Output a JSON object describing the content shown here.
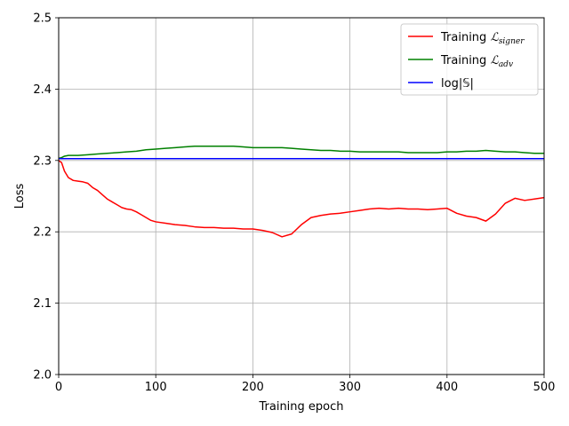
{
  "chart_data": {
    "type": "line",
    "xlabel": "Training epoch",
    "ylabel": "Loss",
    "xlim": [
      0,
      500
    ],
    "ylim": [
      2.0,
      2.5
    ],
    "xticks": [
      0,
      100,
      200,
      300,
      400,
      500
    ],
    "yticks": [
      2.0,
      2.1,
      2.2,
      2.3,
      2.4,
      2.5
    ],
    "xtick_labels": [
      "0",
      "100",
      "200",
      "300",
      "400",
      "500"
    ],
    "ytick_labels": [
      "2.0",
      "2.1",
      "2.2",
      "2.3",
      "2.4",
      "2.5"
    ],
    "grid": true,
    "legend_position": "top-right",
    "series": [
      {
        "name": "Training ℒsigner",
        "legend_main": "Training ",
        "legend_symbol": "ℒ",
        "legend_sub": "signer",
        "color": "#ff0000",
        "x": [
          0,
          3,
          6,
          10,
          15,
          20,
          25,
          30,
          35,
          40,
          45,
          50,
          55,
          60,
          65,
          70,
          75,
          80,
          85,
          90,
          95,
          100,
          110,
          120,
          130,
          140,
          150,
          160,
          170,
          180,
          190,
          200,
          210,
          220,
          230,
          240,
          250,
          260,
          270,
          280,
          290,
          300,
          310,
          320,
          330,
          340,
          350,
          360,
          370,
          380,
          390,
          400,
          410,
          420,
          430,
          440,
          450,
          460,
          470,
          480,
          490,
          500
        ],
        "y": [
          2.3,
          2.297,
          2.285,
          2.276,
          2.272,
          2.271,
          2.27,
          2.268,
          2.262,
          2.258,
          2.252,
          2.246,
          2.242,
          2.238,
          2.234,
          2.232,
          2.231,
          2.228,
          2.224,
          2.22,
          2.216,
          2.214,
          2.212,
          2.21,
          2.209,
          2.207,
          2.206,
          2.206,
          2.205,
          2.205,
          2.204,
          2.204,
          2.202,
          2.199,
          2.193,
          2.197,
          2.21,
          2.22,
          2.223,
          2.225,
          2.226,
          2.228,
          2.23,
          2.232,
          2.233,
          2.232,
          2.233,
          2.232,
          2.232,
          2.231,
          2.232,
          2.233,
          2.226,
          2.222,
          2.22,
          2.215,
          2.225,
          2.24,
          2.247,
          2.244,
          2.246,
          2.248
        ]
      },
      {
        "name": "Training ℒadv",
        "legend_main": "Training ",
        "legend_symbol": "ℒ",
        "legend_sub": "adv",
        "color": "#008000",
        "x": [
          0,
          3,
          6,
          10,
          20,
          30,
          40,
          50,
          60,
          70,
          80,
          90,
          100,
          110,
          120,
          130,
          140,
          150,
          160,
          170,
          180,
          190,
          200,
          210,
          220,
          230,
          240,
          250,
          260,
          270,
          280,
          290,
          300,
          310,
          320,
          330,
          340,
          350,
          360,
          370,
          380,
          390,
          400,
          410,
          420,
          430,
          440,
          450,
          460,
          470,
          480,
          490,
          500
        ],
        "y": [
          2.303,
          2.304,
          2.306,
          2.307,
          2.307,
          2.308,
          2.309,
          2.31,
          2.311,
          2.312,
          2.313,
          2.315,
          2.316,
          2.317,
          2.318,
          2.319,
          2.32,
          2.32,
          2.32,
          2.32,
          2.32,
          2.319,
          2.318,
          2.318,
          2.318,
          2.318,
          2.317,
          2.316,
          2.315,
          2.314,
          2.314,
          2.313,
          2.313,
          2.312,
          2.312,
          2.312,
          2.312,
          2.312,
          2.311,
          2.311,
          2.311,
          2.311,
          2.312,
          2.312,
          2.313,
          2.313,
          2.314,
          2.313,
          2.312,
          2.312,
          2.311,
          2.31,
          2.31
        ]
      },
      {
        "name": "log|𝕊|",
        "legend_main": "log|𝕊|",
        "legend_symbol": "",
        "legend_sub": "",
        "color": "#0000ff",
        "x": [
          0,
          500
        ],
        "y": [
          2.3026,
          2.3026
        ]
      }
    ]
  }
}
